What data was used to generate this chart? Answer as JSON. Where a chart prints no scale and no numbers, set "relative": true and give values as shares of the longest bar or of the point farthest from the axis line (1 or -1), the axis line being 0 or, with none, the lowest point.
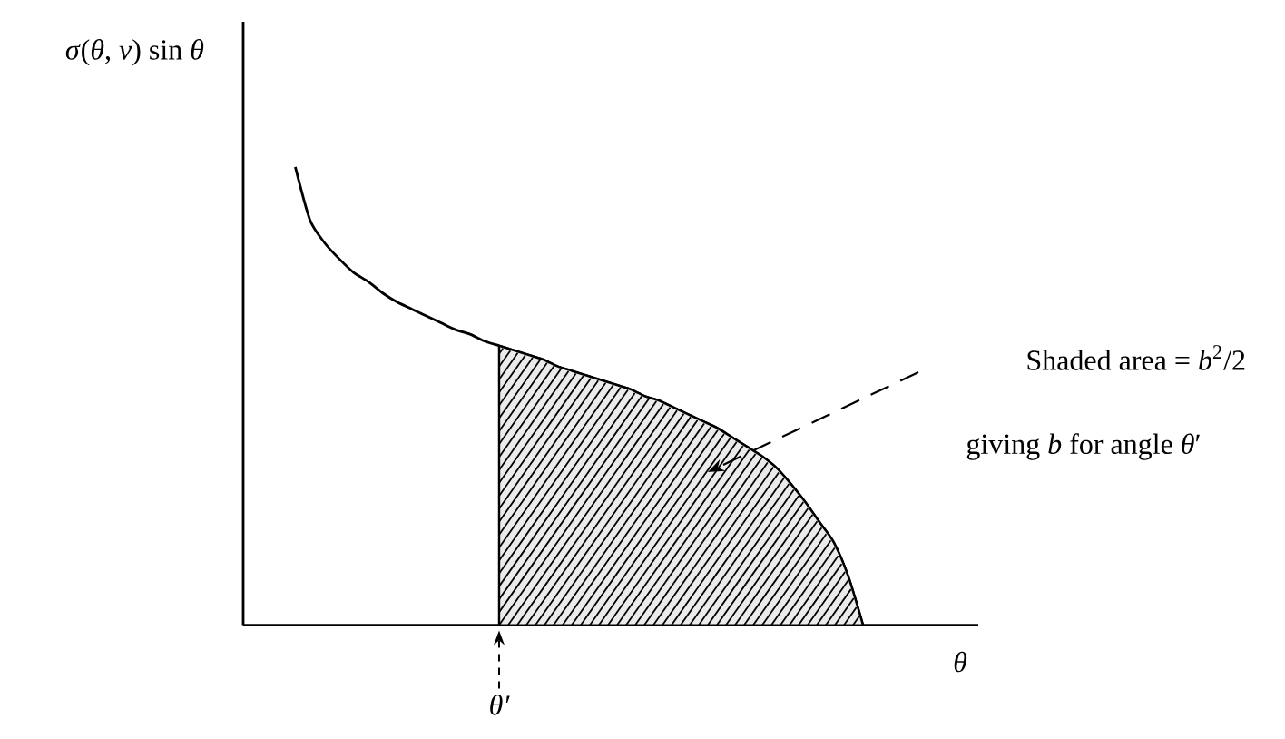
{
  "chart_data": {
    "type": "line",
    "relative": true,
    "marker": "none",
    "ylabel": "*σ*(*θ*, *v*) sin *θ*",
    "xlabel": "θ",
    "categories": [
      null,
      null,
      null,
      null,
      null,
      null,
      null,
      null,
      null,
      null,
      null,
      null,
      null,
      null,
      null,
      null,
      null,
      null,
      null,
      null,
      null,
      null,
      null,
      null,
      null,
      null,
      null,
      null,
      null,
      null,
      null,
      null,
      null,
      null,
      null,
      null,
      null,
      null,
      null,
      null,
      null,
      null,
      null,
      null,
      null,
      null,
      null,
      null,
      null,
      null
    ],
    "series": [
      {
        "color": "#000000",
        "values": [
          null,
          null,
          null,
          1.0,
          0.885,
          0.835,
          0.8,
          0.77,
          0.75,
          0.725,
          0.705,
          0.69,
          0.675,
          0.66,
          0.645,
          0.635,
          0.62,
          0.61,
          0.6,
          0.59,
          0.58,
          0.565,
          0.555,
          0.545,
          0.535,
          0.525,
          0.515,
          0.5,
          0.49,
          0.475,
          0.46,
          0.445,
          0.43,
          0.41,
          0.39,
          0.37,
          0.345,
          0.31,
          0.27,
          0.225,
          0.18,
          0.105,
          0,
          null,
          null,
          null,
          null,
          null,
          null,
          null
        ]
      },
      {
        "type": "area",
        "color": "#ebebeb",
        "values": [
          null,
          null,
          null,
          null,
          null,
          null,
          null,
          null,
          null,
          null,
          null,
          null,
          null,
          null,
          null,
          null,
          null,
          0.61,
          0.6,
          0.59,
          0.58,
          0.565,
          0.555,
          0.545,
          0.535,
          0.525,
          0.515,
          0.5,
          0.49,
          0.475,
          0.46,
          0.445,
          0.43,
          0.41,
          0.39,
          0.37,
          0.345,
          0.31,
          0.27,
          0.225,
          0.18,
          0.105,
          0,
          null,
          null,
          null,
          null,
          null,
          null,
          null
        ]
      }
    ],
    "annotations": [
      "θ′",
      "Shaded area = *b*$^{2}$/2",
      "giving *b* for angle *θ*′"
    ]
  }
}
